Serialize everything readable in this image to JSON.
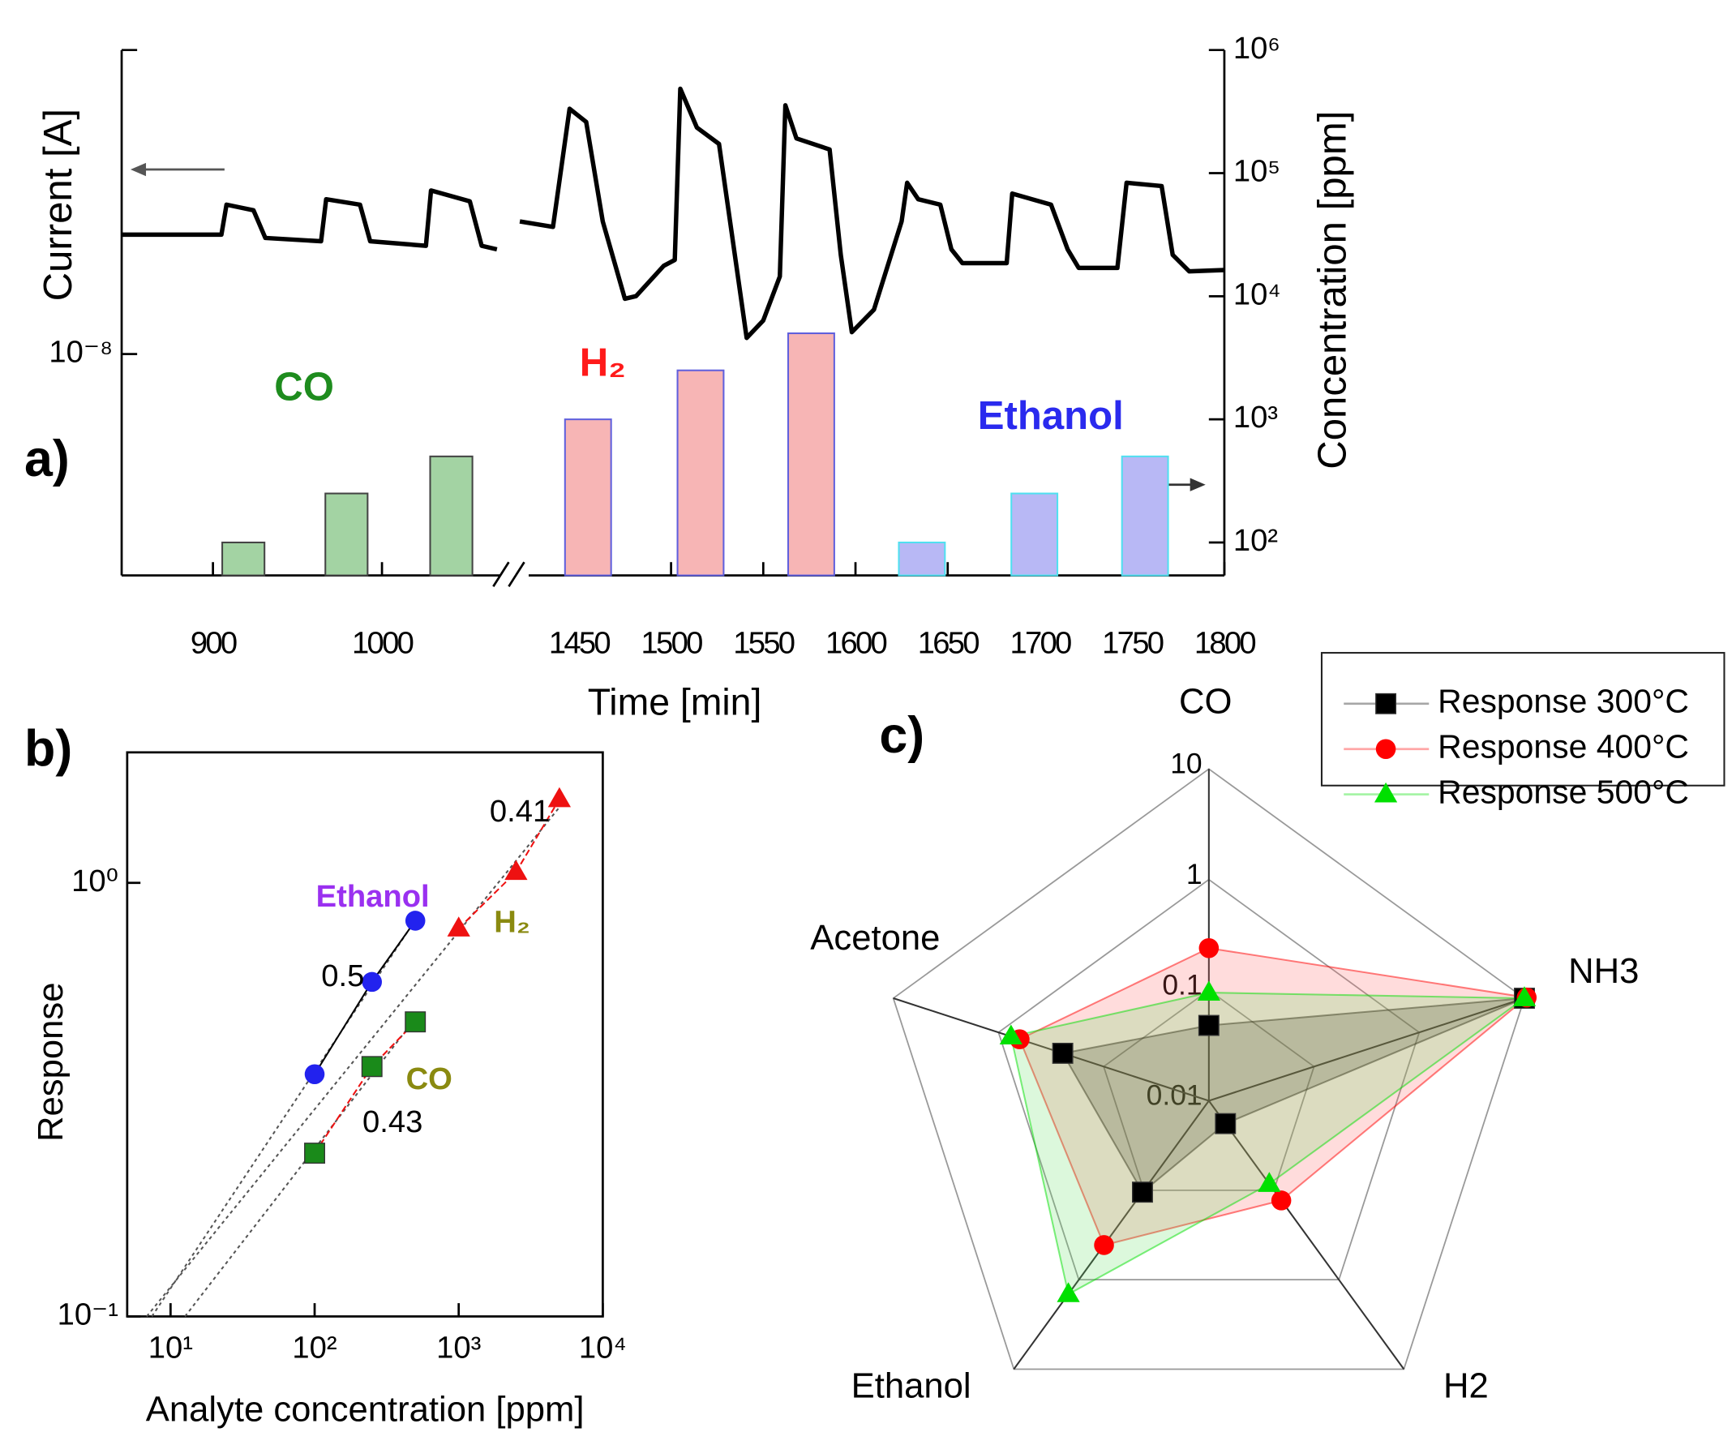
{
  "chart_data": [
    {
      "type": "line_bar",
      "panel_label": "a)",
      "xlabel": "Time [min]",
      "ylabel": "Current [A]",
      "y2label": "Concentration [ppm]",
      "xlim": [
        846,
        1800
      ],
      "xbreak": [
        1075,
        1418
      ],
      "xticks": [
        900,
        1000,
        1450,
        1500,
        1550,
        1600,
        1650,
        1700,
        1750,
        1800
      ],
      "ylog": true,
      "ylim": [
        1.87e-09,
        1e-07
      ],
      "yticks": [
        {
          "value": 1e-08,
          "label": "10⁻⁸"
        }
      ],
      "y2log": true,
      "y2lim": [
        54,
        1000000
      ],
      "y2ticks": [
        {
          "value": 100,
          "label": "10²"
        },
        {
          "value": 1000,
          "label": "10³"
        },
        {
          "value": 10000,
          "label": "10⁴"
        },
        {
          "value": 100000,
          "label": "10⁵"
        },
        {
          "value": 1000000,
          "label": "10⁶"
        }
      ],
      "series": [
        {
          "type": "line",
          "color": "#000000",
          "x": [
            846,
            905,
            908,
            924,
            931,
            964,
            967,
            987,
            993,
            1026,
            1029,
            1052,
            1059,
            1068,
            1075,
            1418,
            1436,
            1445,
            1454,
            1463,
            1475,
            1481,
            1496,
            1502,
            1505,
            1514,
            1526,
            1532,
            1541,
            1550,
            1559,
            1562,
            1568,
            1586,
            1592,
            1598,
            1610,
            1625,
            1628,
            1634,
            1646,
            1652,
            1658,
            1682,
            1685,
            1706,
            1715,
            1721,
            1742,
            1747,
            1766,
            1772,
            1781,
            1800
          ],
          "values": [
            2.47e-08,
            2.47e-08,
            3.1e-08,
            2.97e-08,
            2.41e-08,
            2.35e-08,
            3.23e-08,
            3.1e-08,
            2.35e-08,
            2.27e-08,
            3.45e-08,
            3.18e-08,
            2.27e-08,
            2.21e-08,
            null,
            2.73e-08,
            2.62e-08,
            6.41e-08,
            5.8e-08,
            2.73e-08,
            1.52e-08,
            1.55e-08,
            1.95e-08,
            2.04e-08,
            7.46e-08,
            5.56e-08,
            4.91e-08,
            2.73e-08,
            1.13e-08,
            1.29e-08,
            1.8e-08,
            6.58e-08,
            5.12e-08,
            4.71e-08,
            2.12e-08,
            1.18e-08,
            1.4e-08,
            2.73e-08,
            3.66e-08,
            3.23e-08,
            3.1e-08,
            2.21e-08,
            1.99e-08,
            1.99e-08,
            3.37e-08,
            3.1e-08,
            2.21e-08,
            1.92e-08,
            1.92e-08,
            3.66e-08,
            3.57e-08,
            2.12e-08,
            1.87e-08,
            1.89e-08
          ]
        },
        {
          "type": "bar",
          "axis": "y2",
          "label": "CO",
          "label_color": "#1e8c1e",
          "color": "#a3d3a3",
          "edgecolor": "#444444",
          "x": [
            918,
            979,
            1041
          ],
          "values": [
            100,
            250,
            500
          ]
        },
        {
          "type": "bar",
          "axis": "y2",
          "label": "H₂",
          "label_color": "#ff1a1a",
          "color": "#f7b5b5",
          "edgecolor": "#6060dd",
          "x": [
            1455,
            1516,
            1576
          ],
          "values": [
            1000,
            2500,
            5000
          ]
        },
        {
          "type": "bar",
          "axis": "y2",
          "label": "Ethanol",
          "label_color": "#2a2aee",
          "color": "#b8b8f5",
          "edgecolor": "#50e0f0",
          "x": [
            1636,
            1697,
            1757
          ],
          "values": [
            100,
            250,
            500
          ]
        }
      ]
    },
    {
      "type": "scatter",
      "panel_label": "b)",
      "xlabel": "Analyte concentration [ppm]",
      "ylabel": "Response",
      "xlog": true,
      "xlim": [
        5,
        10000
      ],
      "xticks": [
        {
          "value": 10,
          "label": "10¹"
        },
        {
          "value": 100,
          "label": "10²"
        },
        {
          "value": 1000,
          "label": "10³"
        },
        {
          "value": 10000,
          "label": "10⁴"
        }
      ],
      "ylog": true,
      "ylim": [
        0.1,
        2
      ],
      "yticks": [
        {
          "value": 0.1,
          "label": "10⁻¹"
        },
        {
          "value": 1,
          "label": "10⁰"
        }
      ],
      "series": [
        {
          "name": "Ethanol",
          "label_color": "#9a30f0",
          "color": "#2222ee",
          "marker": "circle",
          "line_color": "#000000",
          "slope": 0.5,
          "x": [
            100,
            250,
            500
          ],
          "values": [
            0.362,
            0.591,
            0.818
          ]
        },
        {
          "name": "H₂",
          "label_color": "#8a8a10",
          "color": "#ee1111",
          "marker": "triangle",
          "line_color": "#ee1111",
          "slope": 0.41,
          "x": [
            1000,
            2500,
            5000
          ],
          "values": [
            0.785,
            1.06,
            1.56
          ]
        },
        {
          "name": "CO",
          "label_color": "#8a8a10",
          "color": "#1a8a1a",
          "marker": "square",
          "line_color": "#ee1111",
          "slope": 0.43,
          "x": [
            100,
            250,
            500
          ],
          "values": [
            0.238,
            0.377,
            0.478
          ]
        }
      ]
    },
    {
      "type": "radar",
      "panel_label": "c)",
      "axes": [
        "CO",
        "NH3",
        "H2",
        "Ethanol",
        "Acetone"
      ],
      "rlog": true,
      "rlim": [
        0.01,
        10
      ],
      "rticks": [
        0.01,
        0.1,
        1,
        10
      ],
      "legend": "upper right",
      "series": [
        {
          "name": "Response 300°C",
          "color": "#000000",
          "marker": "square",
          "fill": "#000000",
          "values": [
            0.048,
            10,
            0.018,
            0.105,
            0.245
          ]
        },
        {
          "name": "Response 400°C",
          "color": "#ff0000",
          "marker": "circle",
          "fill": "#ff6060",
          "values": [
            0.24,
            10.5,
            0.13,
            0.41,
            0.63
          ]
        },
        {
          "name": "Response 500°C",
          "color": "#00e000",
          "marker": "triangle",
          "fill": "#60e060",
          "values": [
            0.095,
            10,
            0.085,
            1.45,
            0.76
          ]
        }
      ]
    }
  ]
}
